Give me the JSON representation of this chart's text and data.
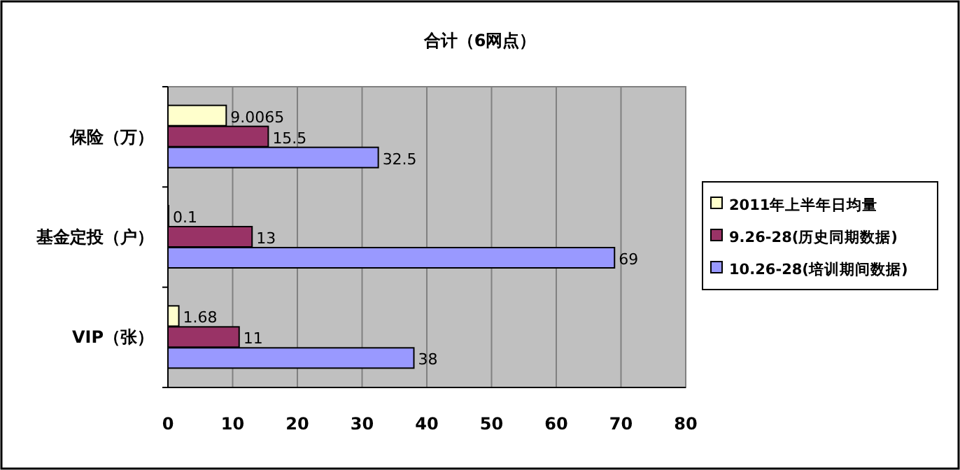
{
  "chart_data": {
    "type": "bar",
    "orientation": "horizontal",
    "title": "合计（6网点）",
    "categories": [
      "保险（万）",
      "基金定投（户）",
      "VIP（张）"
    ],
    "series": [
      {
        "name": "2011年上半年日均量",
        "color": "#ffffcc",
        "values": [
          9.0065,
          0.1,
          1.68
        ]
      },
      {
        "name": "9.26-28(历史同期数据)",
        "color": "#993366",
        "values": [
          15.5,
          13,
          11
        ]
      },
      {
        "name": "10.26-28(培训期间数据)",
        "color": "#9999ff",
        "values": [
          32.5,
          69,
          38
        ]
      }
    ],
    "xlim": [
      0,
      80
    ],
    "xticks": [
      0,
      10,
      20,
      30,
      40,
      50,
      60,
      70,
      80
    ],
    "grid": "x",
    "legend": "right",
    "data_labels": true
  }
}
